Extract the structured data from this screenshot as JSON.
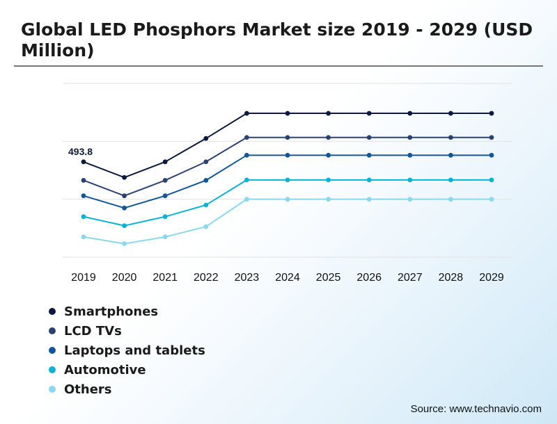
{
  "chart_data": {
    "type": "line",
    "title": "Global LED Phosphors Market size 2019 - 2029 (USD Million)",
    "categories": [
      "2019",
      "2020",
      "2021",
      "2022",
      "2023",
      "2024",
      "2025",
      "2026",
      "2027",
      "2028",
      "2029"
    ],
    "xlabel": "",
    "ylabel": "",
    "ylim": [
      0,
      900
    ],
    "grid": true,
    "legend": "bottom-left",
    "series": [
      {
        "name": "Smartphones",
        "color": "#0b1a3d",
        "values": [
          493.8,
          413,
          493.8,
          615,
          745,
          745,
          745,
          745,
          745,
          745,
          745
        ]
      },
      {
        "name": "LCD TVs",
        "color": "#2a4272",
        "values": [
          398,
          318,
          398,
          494,
          620,
          620,
          620,
          620,
          620,
          620,
          620
        ]
      },
      {
        "name": "Laptops and tablets",
        "color": "#12569a",
        "values": [
          318,
          255,
          318,
          398,
          528,
          528,
          528,
          528,
          528,
          528,
          528
        ]
      },
      {
        "name": "Automotive",
        "color": "#07b3d4",
        "values": [
          210,
          163,
          210,
          270,
          400,
          400,
          400,
          400,
          400,
          400,
          400
        ]
      },
      {
        "name": "Others",
        "color": "#8ad8ec",
        "values": [
          105,
          70,
          105,
          158,
          300,
          300,
          300,
          300,
          300,
          300,
          300
        ]
      }
    ],
    "annotations": [
      {
        "series": 0,
        "index": 0,
        "label": "493.8"
      }
    ]
  },
  "source": "Source: www.technavio.com"
}
